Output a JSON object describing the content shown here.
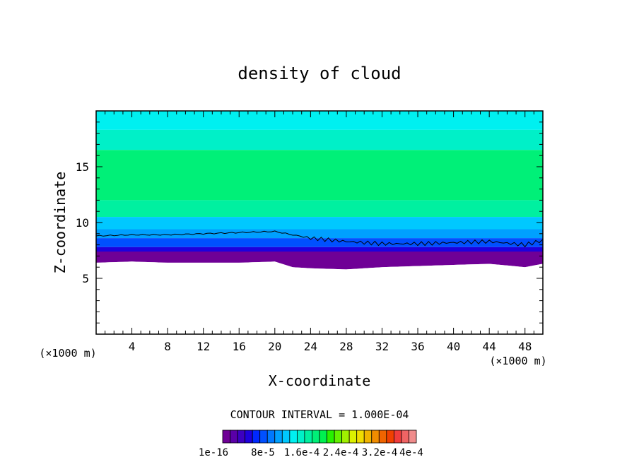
{
  "chart_data": {
    "type": "heatmap",
    "title": "density of cloud",
    "xlabel": "X-coordinate",
    "ylabel": "Z-coordinate",
    "x_unit": "(×1000 m)",
    "z_unit": "(×1000 m)",
    "xlim": [
      0,
      50
    ],
    "ylim": [
      0,
      20
    ],
    "x_ticks": [
      "4",
      "8",
      "12",
      "16",
      "20",
      "24",
      "28",
      "32",
      "36",
      "40",
      "44",
      "48"
    ],
    "y_ticks": [
      "5",
      "10",
      "15"
    ],
    "contour_interval_text": "CONTOUR INTERVAL = 1.000E-04",
    "colorbar": {
      "labels": [
        "1e-16",
        "8e-5",
        "1.6e-4",
        "2.4e-4",
        "3.2e-4",
        "4e-4"
      ],
      "colors": [
        "#6f0096",
        "#5a00a8",
        "#3c00c0",
        "#1e00dc",
        "#0028ff",
        "#0050ff",
        "#0078ff",
        "#00a0ff",
        "#00c8ff",
        "#00f0f0",
        "#00f0c8",
        "#00f0a0",
        "#00f078",
        "#00f050",
        "#28f000",
        "#64f000",
        "#a0f000",
        "#dcf000",
        "#f0dc00",
        "#f0b400",
        "#f08c00",
        "#f06400",
        "#f04000",
        "#f03c3c",
        "#f06464",
        "#f08c8c"
      ]
    },
    "bands": [
      {
        "name": "top",
        "z_from": 18.3,
        "z_to": 20,
        "color": "#00f0f0"
      },
      {
        "name": "upper-teal",
        "z_from": 16.5,
        "z_to": 18.3,
        "color": "#00f0c8"
      },
      {
        "name": "core",
        "z_from": 12.0,
        "z_to": 16.5,
        "color": "#00f078"
      },
      {
        "name": "lower-teal",
        "z_from": 10.5,
        "z_to": 12.0,
        "color": "#00f0a0"
      },
      {
        "name": "cyan",
        "z_from": 9.4,
        "z_to": 10.5,
        "color": "#00c8ff"
      },
      {
        "name": "sky",
        "z_from": 8.6,
        "z_to": 9.4,
        "color": "#00a0ff"
      },
      {
        "name": "blue",
        "z_from": 7.8,
        "z_to": 8.6,
        "color": "#0050ff"
      },
      {
        "name": "deep-blue",
        "z_from": 7.2,
        "z_to": 7.8,
        "color": "#1e00dc"
      },
      {
        "name": "purple-base",
        "z_from": 6.3,
        "z_to": 7.2,
        "color": "#6f0096"
      }
    ],
    "cloud_base_km": {
      "x": [
        0,
        4,
        8,
        12,
        16,
        20,
        22,
        24,
        28,
        32,
        36,
        40,
        44,
        48,
        50
      ],
      "z": [
        6.4,
        6.5,
        6.4,
        6.4,
        6.4,
        6.5,
        6.0,
        5.9,
        5.8,
        6.0,
        6.1,
        6.2,
        6.3,
        6.0,
        6.3
      ]
    },
    "contour_line_km": {
      "x": [
        0,
        4,
        8,
        12,
        16,
        20,
        22,
        24,
        28,
        32,
        36,
        40,
        44,
        48,
        50
      ],
      "z": [
        8.8,
        8.9,
        8.9,
        9.0,
        9.1,
        9.2,
        8.9,
        8.6,
        8.3,
        8.1,
        8.1,
        8.2,
        8.3,
        8.0,
        8.4
      ]
    }
  }
}
